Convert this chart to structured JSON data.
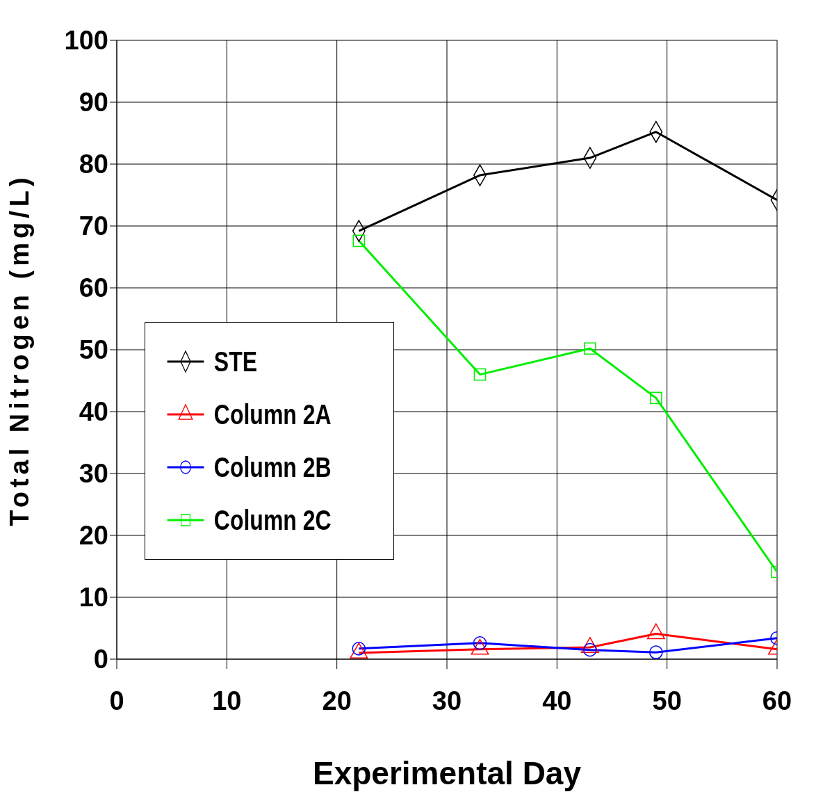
{
  "chart_data": {
    "type": "line",
    "xlabel": "Experimental Day",
    "ylabel": "Total Nitrogen  (mg/L)",
    "xlim": [
      0,
      60
    ],
    "xticks": [
      0,
      10,
      20,
      30,
      40,
      50,
      60
    ],
    "ylim": [
      0,
      100
    ],
    "yticks": [
      0,
      10,
      20,
      30,
      40,
      50,
      60,
      70,
      80,
      90,
      100
    ],
    "grid": true,
    "legend": "left",
    "line_style": "solid",
    "x": [
      22,
      33,
      43,
      49,
      60
    ],
    "series": [
      {
        "name": "STE",
        "color": "#000000",
        "marker": "diamond",
        "values": [
          69.2,
          78.2,
          81,
          85.2,
          74.2
        ]
      },
      {
        "name": "Column 2A",
        "color": "#ff0000",
        "marker": "triangle",
        "values": [
          1.0,
          1.6,
          1.9,
          4.1,
          1.6
        ]
      },
      {
        "name": "Column 2B",
        "color": "#0000ff",
        "marker": "circle",
        "values": [
          1.7,
          2.6,
          1.5,
          1.1,
          3.4
        ]
      },
      {
        "name": "Column 2C",
        "color": "#00ee00",
        "marker": "square",
        "values": [
          67.6,
          46,
          50.2,
          42.2,
          14.1
        ]
      }
    ]
  }
}
